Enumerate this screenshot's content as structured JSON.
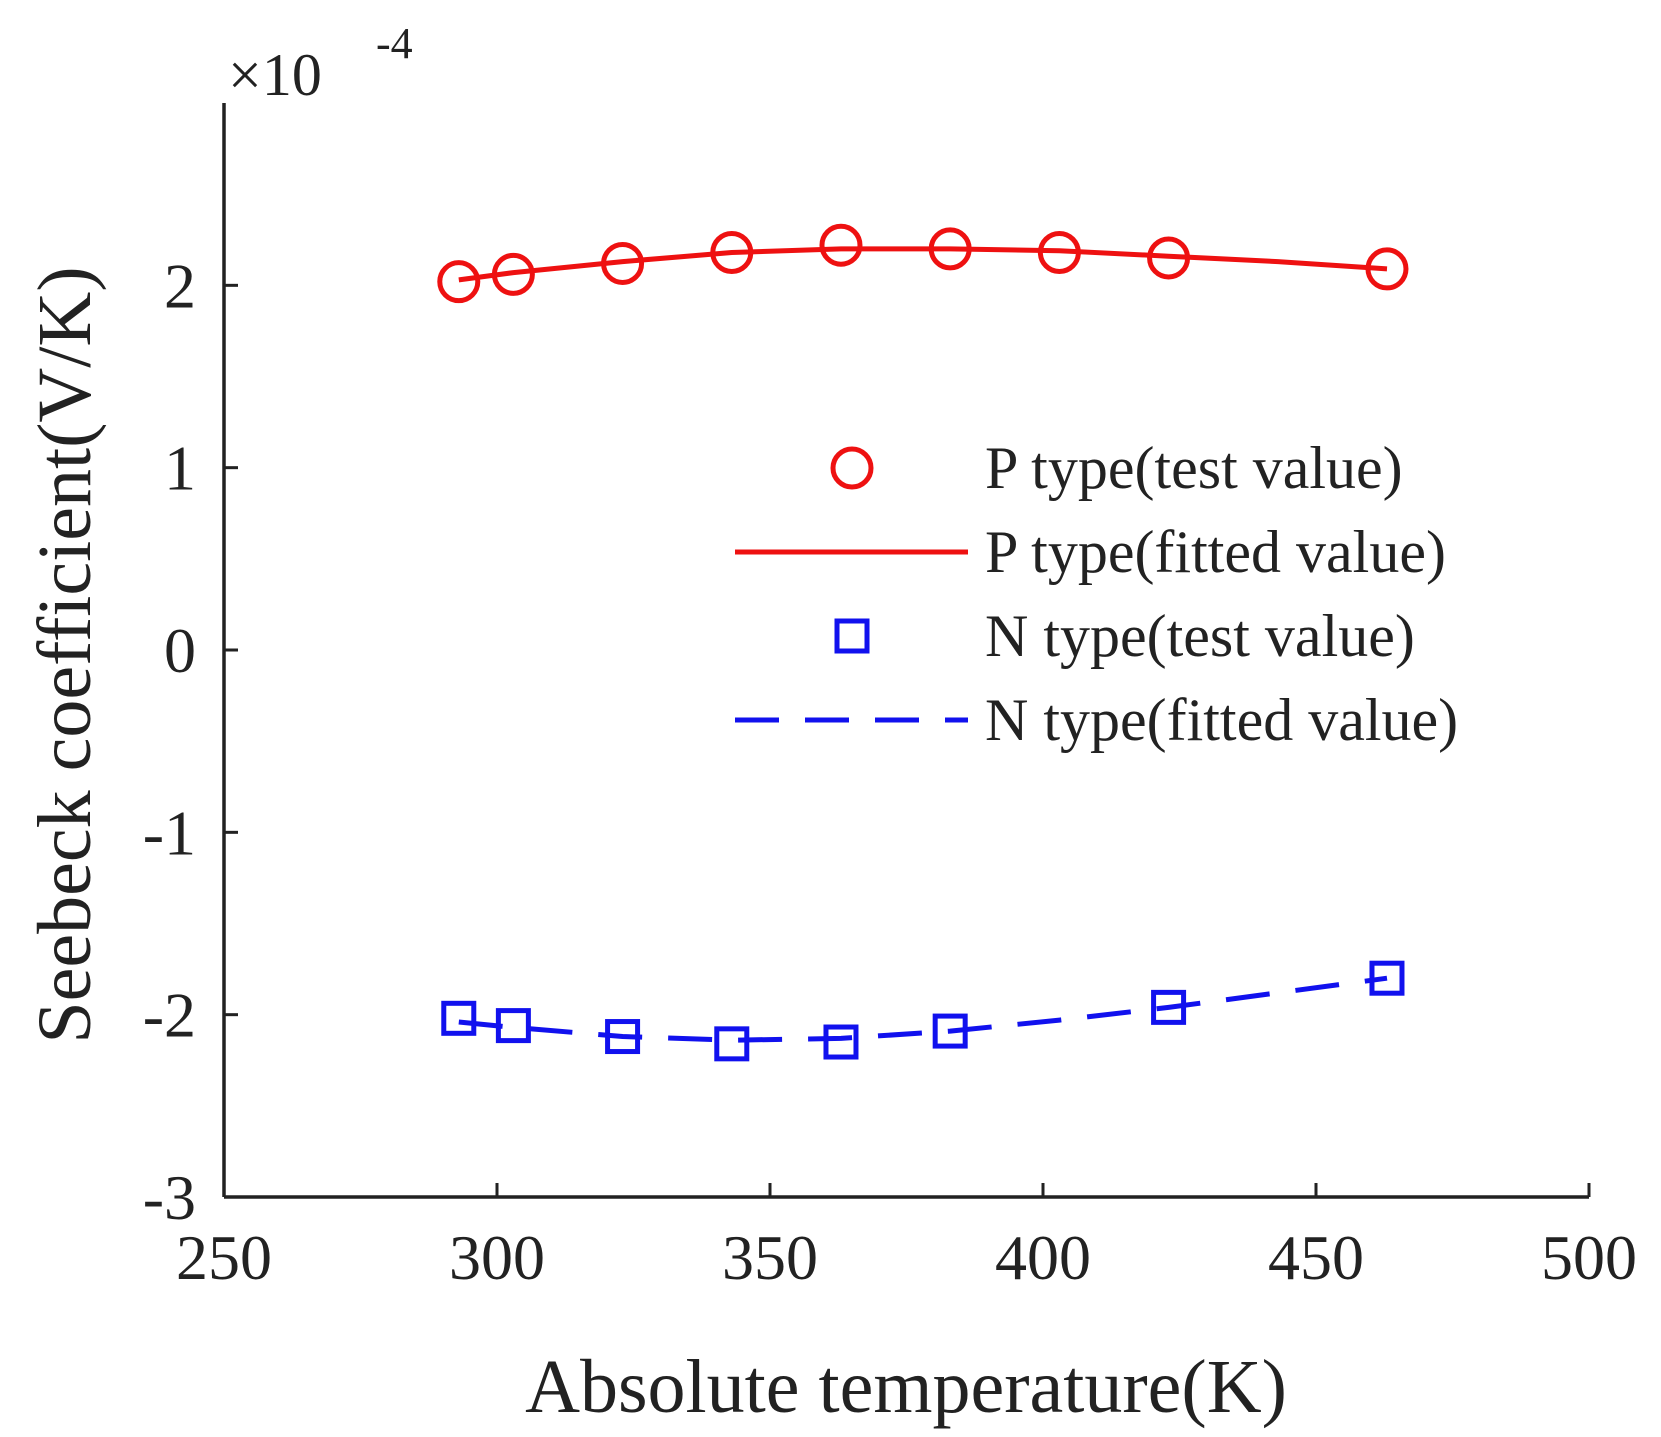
{
  "chart_data": {
    "type": "line",
    "title": "",
    "xlabel": "Absolute temperature(K)",
    "ylabel": "Seebeck coefficient(V/K)",
    "y_scale_label": {
      "base": "×10",
      "exponent": "-4"
    },
    "xlim": [
      250,
      500
    ],
    "ylim": [
      -3,
      3
    ],
    "x_ticks": [
      250,
      300,
      350,
      400,
      450,
      500
    ],
    "y_ticks": [
      -3,
      -2,
      -1,
      0,
      1,
      2
    ],
    "x_tick_labels": [
      "250",
      "300",
      "350",
      "400",
      "450",
      "500"
    ],
    "y_tick_labels": [
      "-3",
      "-2",
      "-1",
      "0",
      "1",
      "2"
    ],
    "grid": false,
    "legend_position": "center-right",
    "series": [
      {
        "name": "P type(test value)",
        "style": "markers",
        "marker": "circle",
        "color": "#ee1111",
        "x": [
          293,
          303,
          323,
          343,
          363,
          383,
          403,
          423,
          463
        ],
        "y": [
          2.02,
          2.06,
          2.12,
          2.18,
          2.22,
          2.2,
          2.18,
          2.15,
          2.09
        ]
      },
      {
        "name": "P type(fitted value)",
        "style": "line",
        "dash": "solid",
        "color": "#ee1111",
        "x": [
          293,
          303,
          323,
          343,
          363,
          383,
          403,
          423,
          443,
          463
        ],
        "y": [
          2.03,
          2.07,
          2.13,
          2.18,
          2.2,
          2.2,
          2.19,
          2.16,
          2.13,
          2.09
        ]
      },
      {
        "name": "N type(test value)",
        "style": "markers",
        "marker": "square",
        "color": "#1111ee",
        "x": [
          293,
          303,
          323,
          343,
          363,
          383,
          423,
          463
        ],
        "y": [
          -2.02,
          -2.06,
          -2.12,
          -2.16,
          -2.15,
          -2.09,
          -1.96,
          -1.8
        ]
      },
      {
        "name": "N type(fitted value)",
        "style": "line",
        "dash": "dashed",
        "color": "#1111ee",
        "x": [
          293,
          303,
          323,
          343,
          363,
          383,
          403,
          423,
          443,
          463
        ],
        "y": [
          -2.04,
          -2.07,
          -2.12,
          -2.14,
          -2.13,
          -2.09,
          -2.03,
          -1.96,
          -1.88,
          -1.8
        ]
      }
    ]
  }
}
